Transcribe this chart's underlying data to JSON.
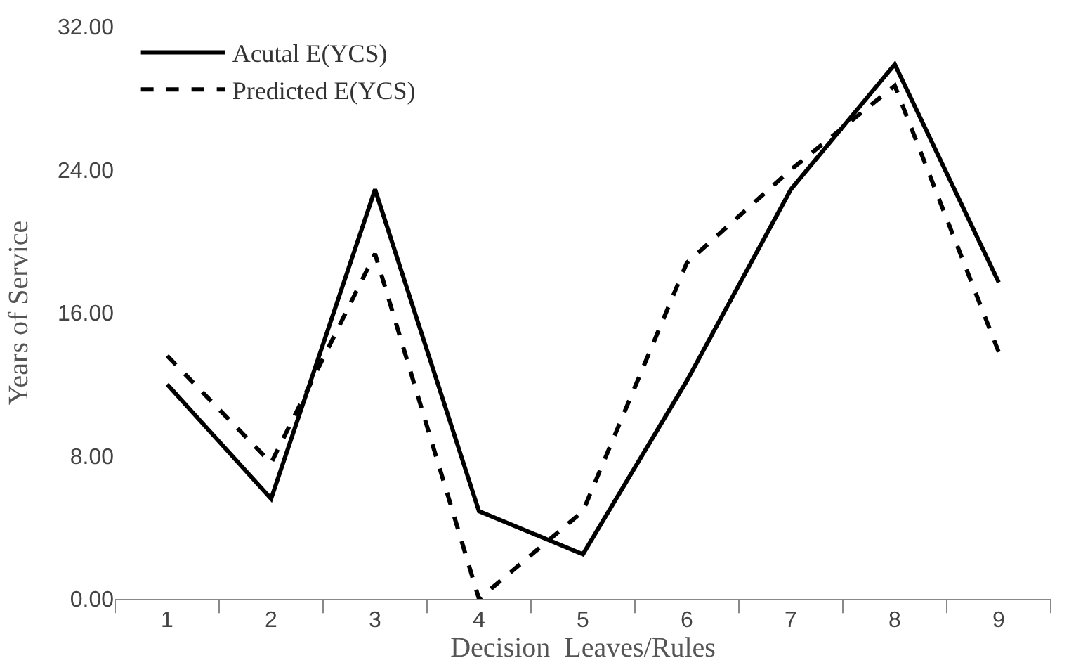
{
  "chart_data": {
    "type": "line",
    "xlabel": "Decision  Leaves/Rules",
    "ylabel": "Years of Service",
    "categories": [
      "1",
      "2",
      "3",
      "4",
      "5",
      "6",
      "7",
      "8",
      "9"
    ],
    "series": [
      {
        "name": "Acutal E(YCS)",
        "color": "#000000",
        "line_style": "solid",
        "values": [
          12.0,
          5.6,
          22.9,
          4.9,
          2.5,
          12.2,
          22.9,
          29.9,
          17.7
        ]
      },
      {
        "name": "Predicted E(YCS)",
        "color": "#000000",
        "line_style": "dashed",
        "values": [
          13.6,
          7.6,
          19.3,
          0.0,
          4.9,
          18.8,
          24.0,
          28.7,
          13.8
        ]
      }
    ],
    "ylim": [
      0,
      32
    ],
    "yticks": [
      {
        "value": 0,
        "label": "0.00"
      },
      {
        "value": 8,
        "label": "8.00"
      },
      {
        "value": 16,
        "label": "16.00"
      },
      {
        "value": 24,
        "label": "24.00"
      },
      {
        "value": 32,
        "label": "32.00"
      }
    ],
    "legend": "top left",
    "marker": "none"
  }
}
